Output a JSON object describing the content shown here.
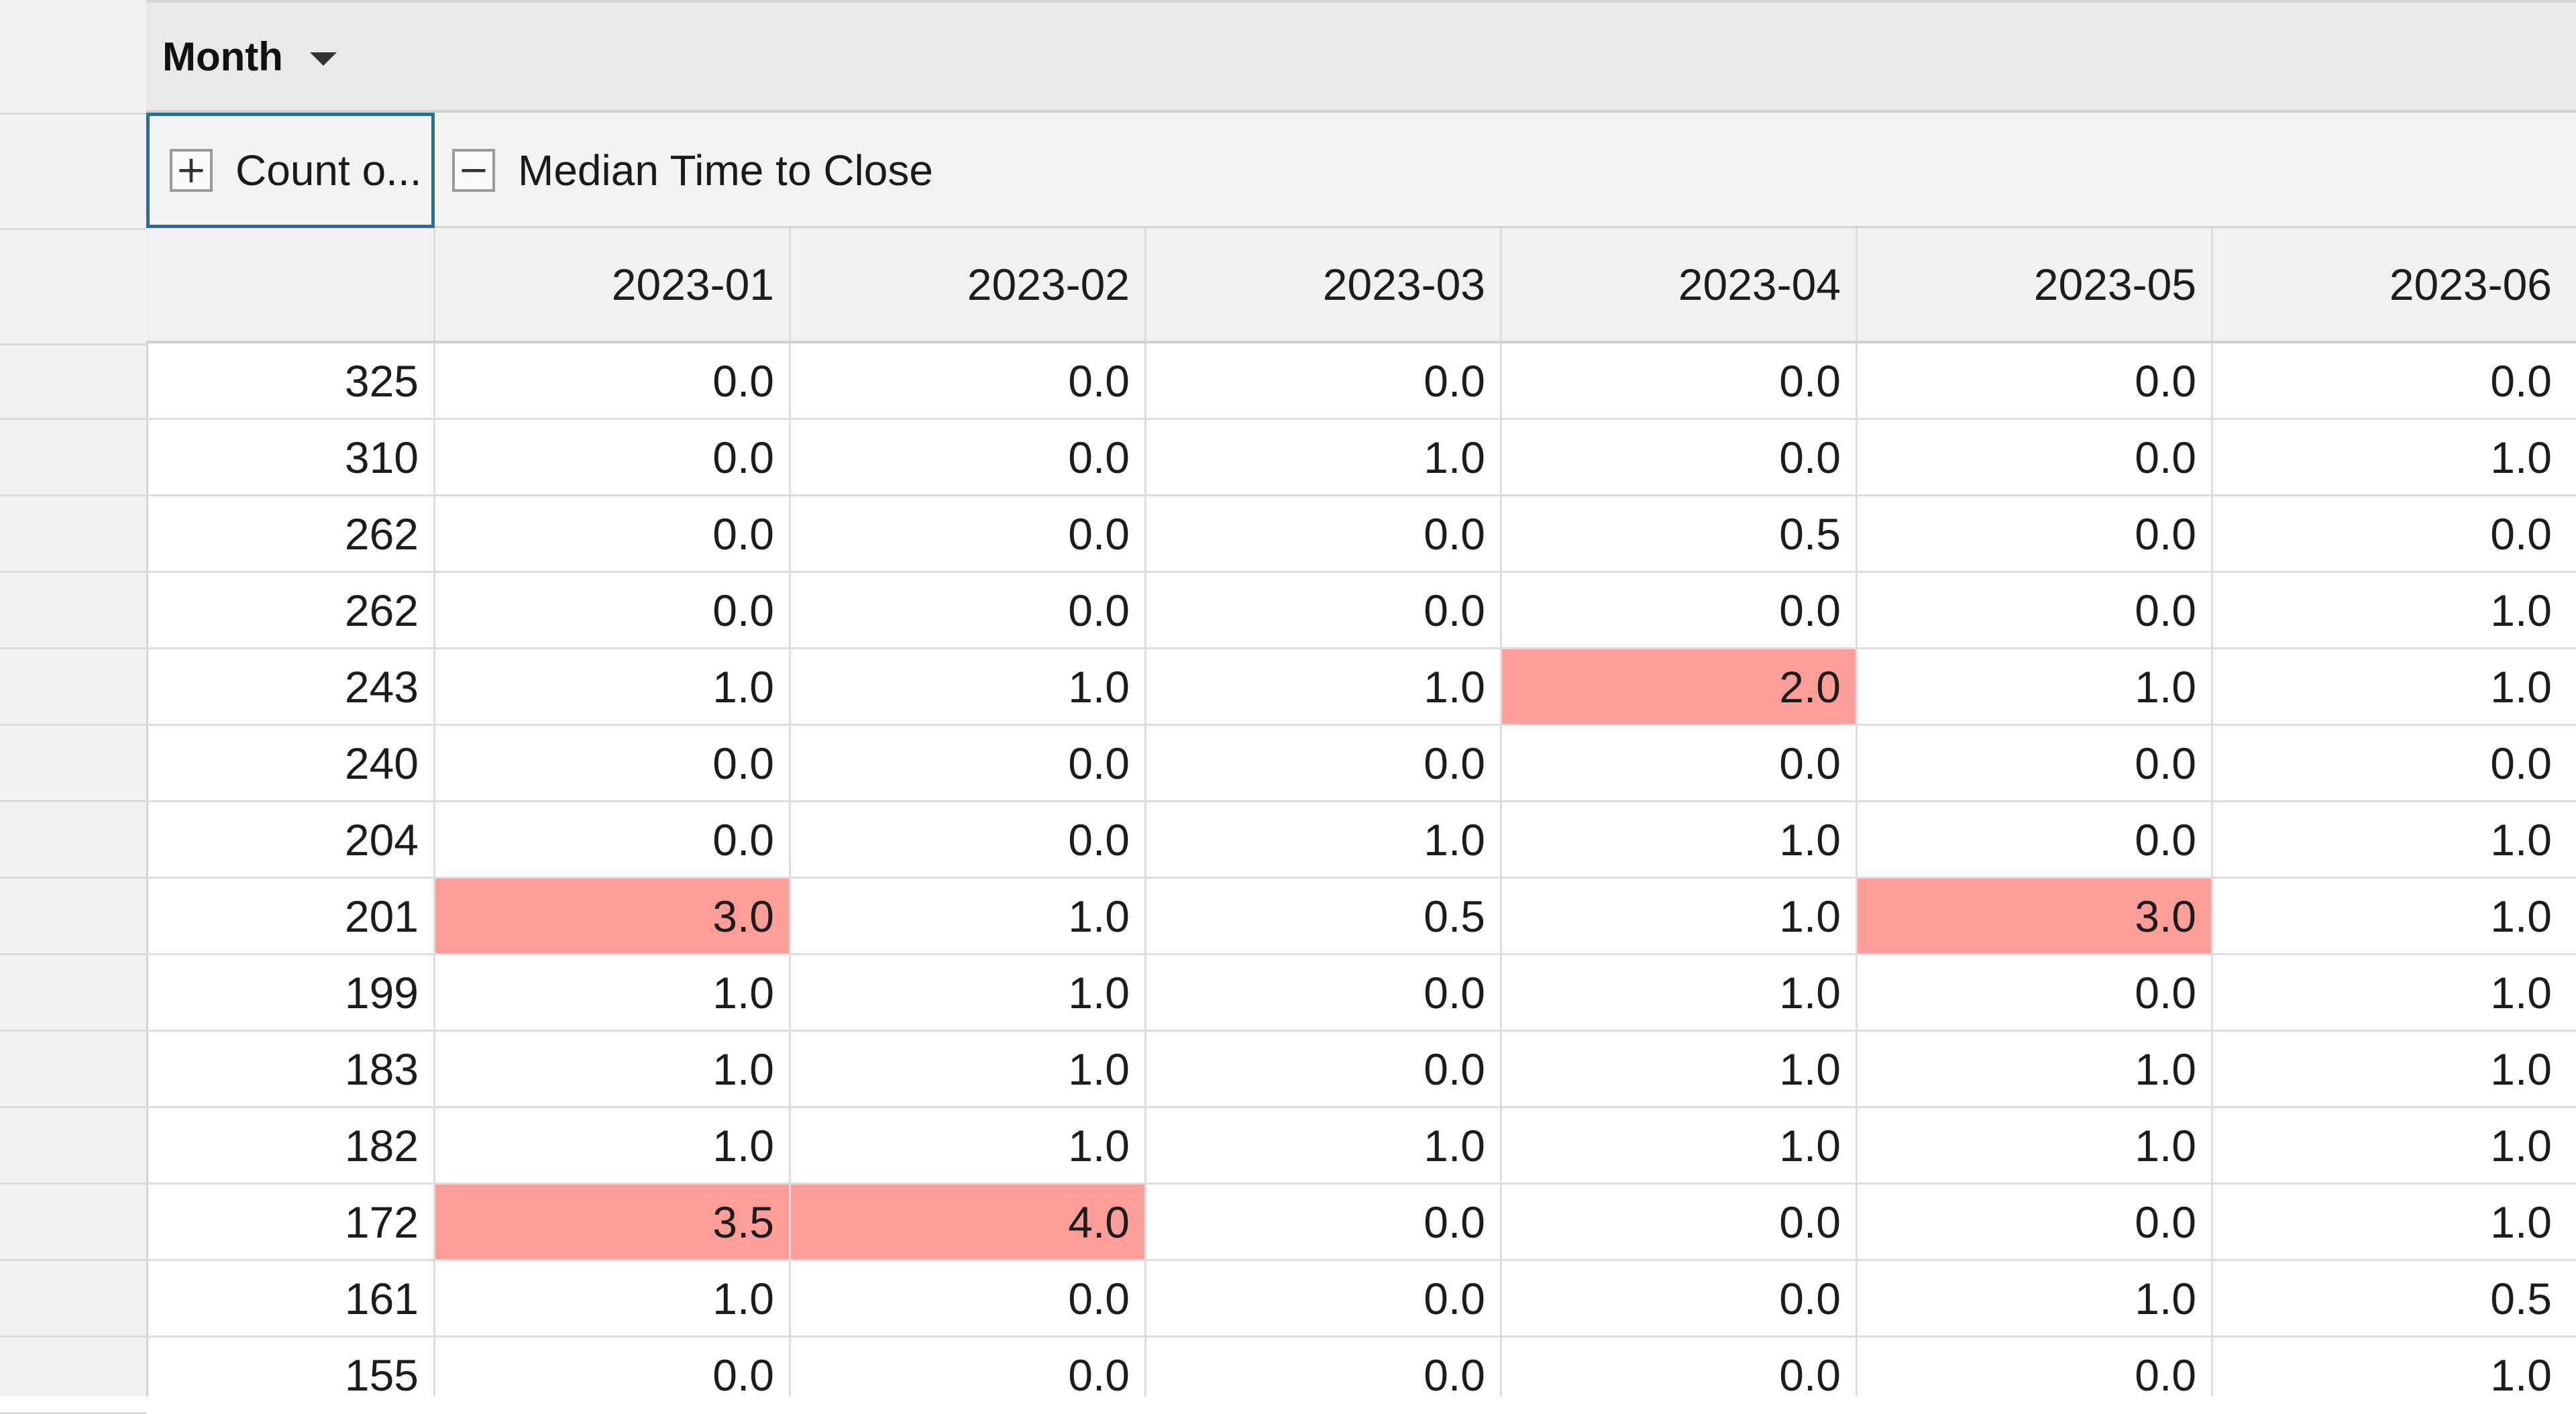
{
  "pivot": {
    "column_field": {
      "label": "Month",
      "icon": "caret-down-icon"
    },
    "measures": [
      {
        "label": "Count o...",
        "toggle": "+",
        "selected": true
      },
      {
        "label": "Median Time to Close",
        "toggle": "−",
        "selected": false
      }
    ],
    "columns": [
      "2023-01",
      "2023-02",
      "2023-03",
      "2023-04",
      "2023-05",
      "2023-06"
    ],
    "highlight_color": "#ff9e99",
    "rows": [
      {
        "count": "325",
        "values": [
          "0.0",
          "0.0",
          "0.0",
          "0.0",
          "0.0",
          "0.0"
        ],
        "highlight": []
      },
      {
        "count": "310",
        "values": [
          "0.0",
          "0.0",
          "1.0",
          "0.0",
          "0.0",
          "1.0"
        ],
        "highlight": []
      },
      {
        "count": "262",
        "values": [
          "0.0",
          "0.0",
          "0.0",
          "0.5",
          "0.0",
          "0.0"
        ],
        "highlight": []
      },
      {
        "count": "262",
        "values": [
          "0.0",
          "0.0",
          "0.0",
          "0.0",
          "0.0",
          "1.0"
        ],
        "highlight": []
      },
      {
        "count": "243",
        "values": [
          "1.0",
          "1.0",
          "1.0",
          "2.0",
          "1.0",
          "1.0"
        ],
        "highlight": [
          3
        ]
      },
      {
        "count": "240",
        "values": [
          "0.0",
          "0.0",
          "0.0",
          "0.0",
          "0.0",
          "0.0"
        ],
        "highlight": []
      },
      {
        "count": "204",
        "values": [
          "0.0",
          "0.0",
          "1.0",
          "1.0",
          "0.0",
          "1.0"
        ],
        "highlight": []
      },
      {
        "count": "201",
        "values": [
          "3.0",
          "1.0",
          "0.5",
          "1.0",
          "3.0",
          "1.0"
        ],
        "highlight": [
          0,
          4
        ]
      },
      {
        "count": "199",
        "values": [
          "1.0",
          "1.0",
          "0.0",
          "1.0",
          "0.0",
          "1.0"
        ],
        "highlight": []
      },
      {
        "count": "183",
        "values": [
          "1.0",
          "1.0",
          "0.0",
          "1.0",
          "1.0",
          "1.0"
        ],
        "highlight": []
      },
      {
        "count": "182",
        "values": [
          "1.0",
          "1.0",
          "1.0",
          "1.0",
          "1.0",
          "1.0"
        ],
        "highlight": []
      },
      {
        "count": "172",
        "values": [
          "3.5",
          "4.0",
          "0.0",
          "0.0",
          "0.0",
          "1.0"
        ],
        "highlight": [
          0,
          1
        ]
      },
      {
        "count": "161",
        "values": [
          "1.0",
          "0.0",
          "0.0",
          "0.0",
          "1.0",
          "0.5"
        ],
        "highlight": []
      },
      {
        "count": "155",
        "values": [
          "0.0",
          "0.0",
          "0.0",
          "0.0",
          "0.0",
          "1.0"
        ],
        "highlight": []
      }
    ]
  }
}
